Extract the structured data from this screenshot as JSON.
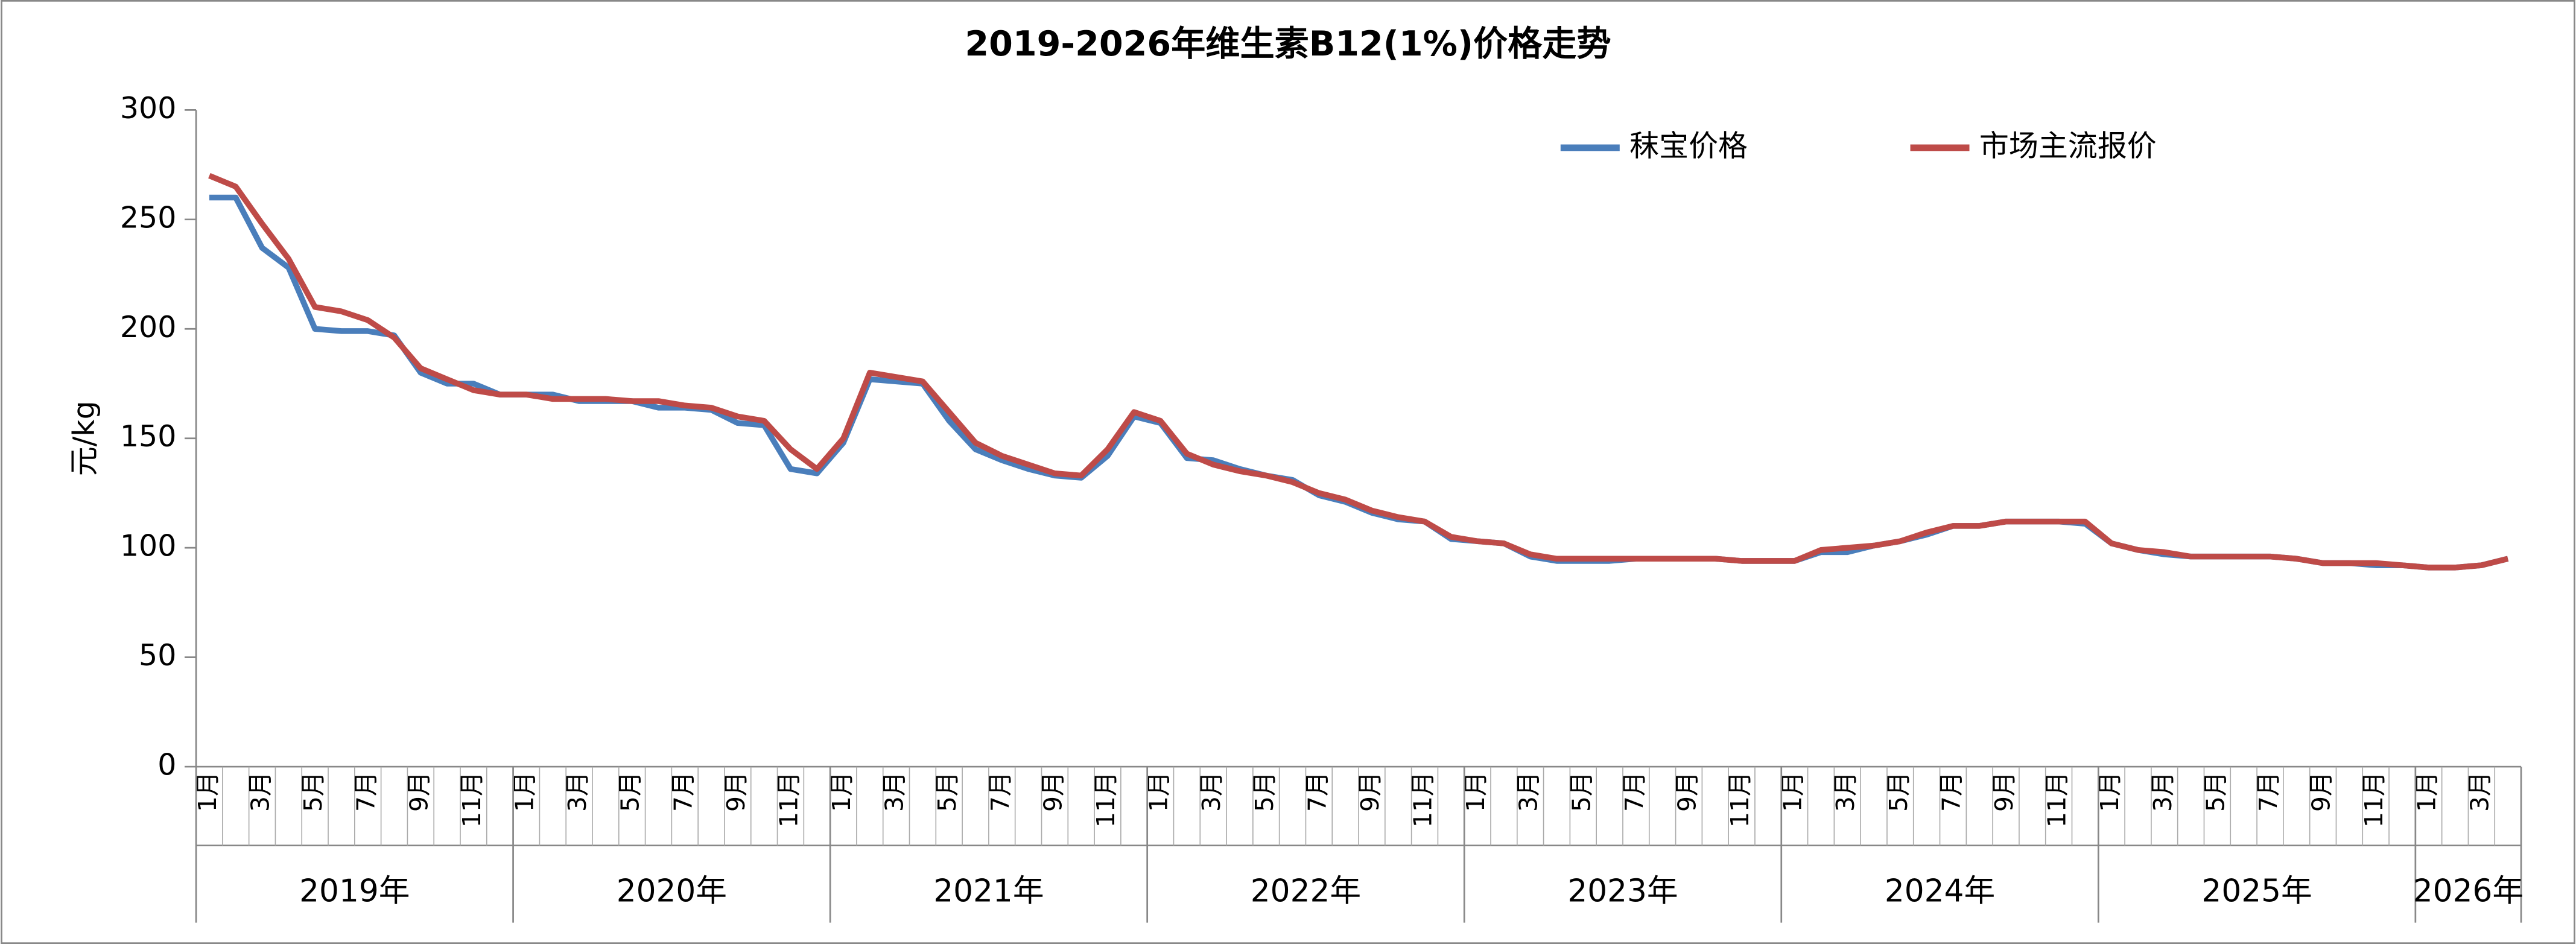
{
  "chart_data": {
    "type": "line",
    "title": "2019-2026年维生素B12(1%)价格走势",
    "y_label": "元/kg",
    "ylim": [
      0,
      300
    ],
    "yticks": [
      0,
      50,
      100,
      150,
      200,
      250,
      300
    ],
    "categories": [
      "1月",
      null,
      "3月",
      null,
      "5月",
      null,
      "7月",
      null,
      "9月",
      null,
      "11月",
      null,
      "1月",
      null,
      "3月",
      null,
      "5月",
      null,
      "7月",
      null,
      "9月",
      null,
      "11月",
      null,
      "1月",
      null,
      "3月",
      null,
      "5月",
      null,
      "7月",
      null,
      "9月",
      null,
      "11月",
      null,
      "1月",
      null,
      "3月",
      null,
      "5月",
      null,
      "7月",
      null,
      "9月",
      null,
      "11月",
      null,
      "1月",
      null,
      "3月",
      null,
      "5月",
      null,
      "7月",
      null,
      "9月",
      null,
      "11月",
      null,
      "1月",
      null,
      "3月",
      null,
      "5月",
      null,
      "7月",
      null,
      "9月",
      null,
      "11月",
      null,
      "1月",
      null,
      "3月",
      null,
      "5月",
      null,
      "7月",
      null,
      "9月",
      null,
      "11月",
      null,
      "1月",
      null,
      "3月",
      null
    ],
    "years": [
      "2019年",
      "2020年",
      "2021年",
      "2022年",
      "2023年",
      "2024年",
      "2025年",
      "2026年"
    ],
    "series": [
      {
        "name": "秣宝价格",
        "color": "#4a7ebb",
        "values": [
          260,
          260,
          237,
          228,
          200,
          199,
          199,
          197,
          180,
          175,
          175,
          170,
          170,
          170,
          167,
          167,
          167,
          164,
          164,
          163,
          157,
          156,
          136,
          134,
          148,
          177,
          176,
          175,
          158,
          145,
          140,
          136,
          133,
          132,
          142,
          160,
          157,
          141,
          140,
          136,
          133,
          131,
          124,
          121,
          116,
          113,
          112,
          104,
          103,
          102,
          96,
          94,
          94,
          94,
          95,
          95,
          95,
          95,
          94,
          94,
          94,
          98,
          98,
          101,
          103,
          106,
          110,
          110,
          112,
          112,
          112,
          111,
          102,
          99,
          97,
          96,
          96,
          96,
          96,
          95,
          93,
          93,
          92,
          92,
          91,
          91,
          92,
          95
        ]
      },
      {
        "name": "市场主流报价",
        "color": "#be4b48",
        "values": [
          270,
          265,
          248,
          232,
          210,
          208,
          204,
          196,
          182,
          177,
          172,
          170,
          170,
          168,
          168,
          168,
          167,
          167,
          165,
          164,
          160,
          158,
          145,
          136,
          150,
          180,
          178,
          176,
          162,
          148,
          142,
          138,
          134,
          133,
          145,
          162,
          158,
          143,
          138,
          135,
          133,
          130,
          125,
          122,
          117,
          114,
          112,
          105,
          103,
          102,
          97,
          95,
          95,
          95,
          95,
          95,
          95,
          95,
          94,
          94,
          94,
          99,
          100,
          101,
          103,
          107,
          110,
          110,
          112,
          112,
          112,
          112,
          102,
          99,
          98,
          96,
          96,
          96,
          96,
          95,
          93,
          93,
          93,
          92,
          91,
          91,
          92,
          95
        ]
      }
    ],
    "legend": "top-right"
  }
}
